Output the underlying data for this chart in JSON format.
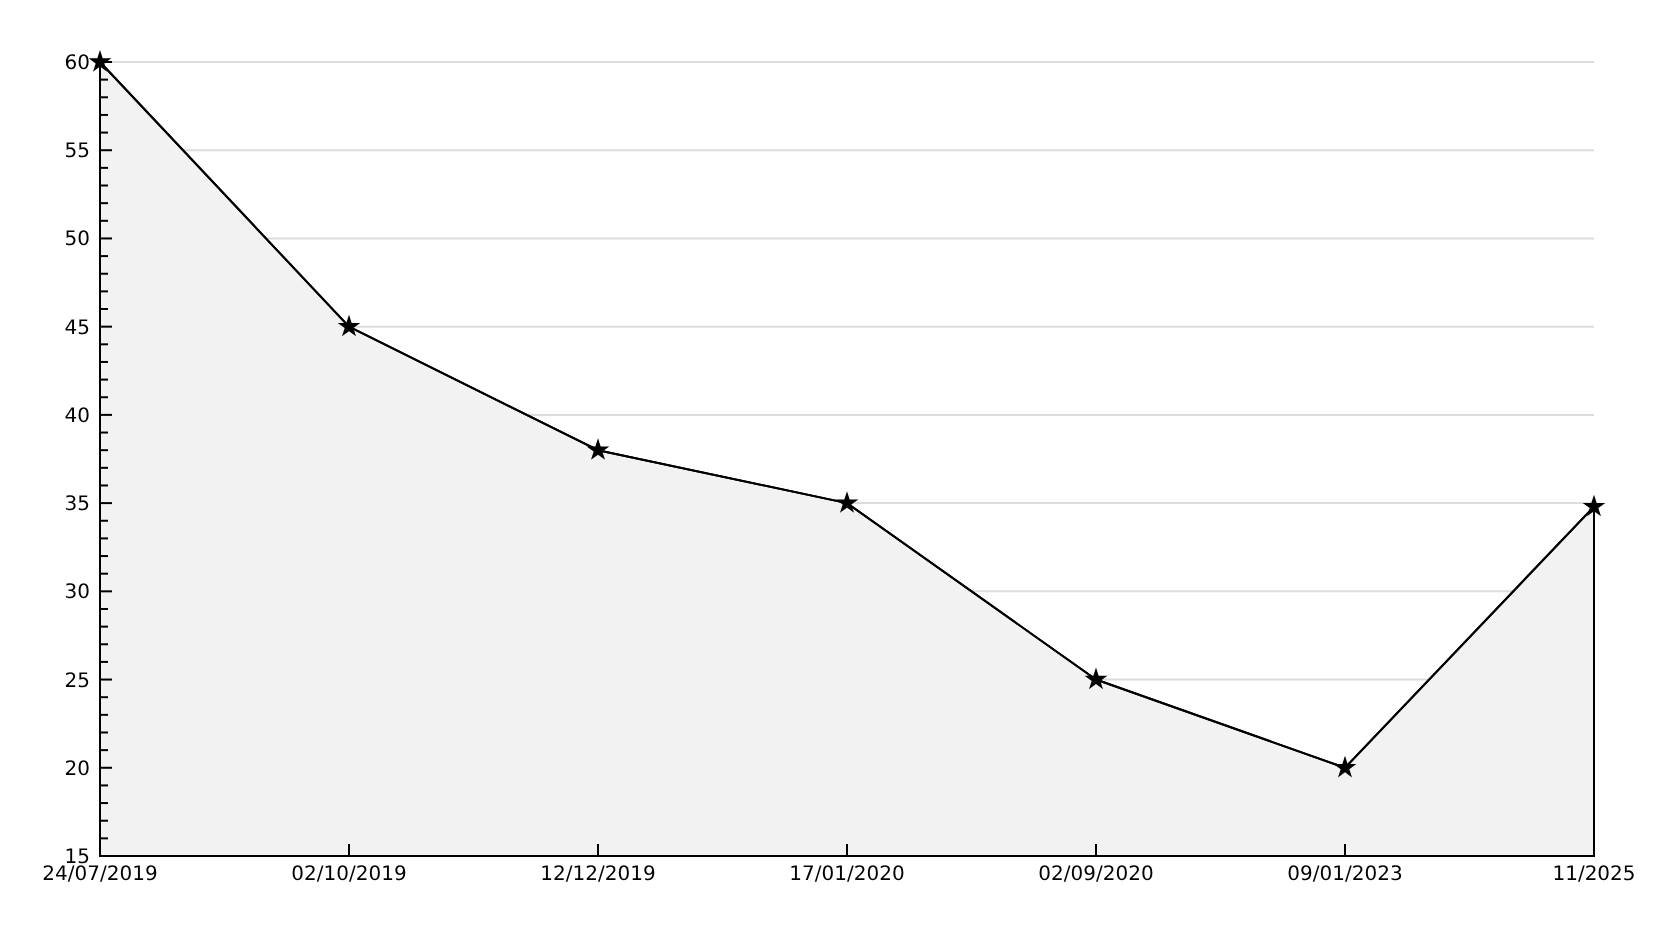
{
  "chart_data": {
    "type": "area",
    "categories": [
      "24/07/2019",
      "02/10/2019",
      "12/12/2019",
      "17/01/2020",
      "02/09/2020",
      "09/01/2023",
      "11/2025"
    ],
    "series": [
      {
        "color": "#f2f2f2",
        "values": [
          60,
          45,
          38,
          35,
          25,
          20,
          34.8
        ]
      }
    ],
    "ylim": [
      15,
      60
    ],
    "yticks": [
      15,
      {
        "value": 16,
        "label": null
      },
      {
        "value": 17,
        "label": null
      },
      {
        "value": 18,
        "label": null
      },
      {
        "value": 19,
        "label": null
      },
      20,
      {
        "value": 21,
        "label": null
      },
      {
        "value": 22,
        "label": null
      },
      {
        "value": 23,
        "label": null
      },
      {
        "value": 24,
        "label": null
      },
      25,
      {
        "value": 26,
        "label": null
      },
      {
        "value": 27,
        "label": null
      },
      {
        "value": 28,
        "label": null
      },
      {
        "value": 29,
        "label": null
      },
      30,
      {
        "value": 31,
        "label": null
      },
      {
        "value": 32,
        "label": null
      },
      {
        "value": 33,
        "label": null
      },
      {
        "value": 34,
        "label": null
      },
      35,
      {
        "value": 36,
        "label": null
      },
      {
        "value": 37,
        "label": null
      },
      {
        "value": 38,
        "label": null
      },
      {
        "value": 39,
        "label": null
      },
      40,
      {
        "value": 41,
        "label": null
      },
      {
        "value": 42,
        "label": null
      },
      {
        "value": 43,
        "label": null
      },
      {
        "value": 44,
        "label": null
      },
      45,
      {
        "value": 46,
        "label": null
      },
      {
        "value": 47,
        "label": null
      },
      {
        "value": 48,
        "label": null
      },
      {
        "value": 49,
        "label": null
      },
      50,
      {
        "value": 51,
        "label": null
      },
      {
        "value": 52,
        "label": null
      },
      {
        "value": 53,
        "label": null
      },
      {
        "value": 54,
        "label": null
      },
      55,
      {
        "value": 56,
        "label": null
      },
      {
        "value": 57,
        "label": null
      },
      {
        "value": 58,
        "label": null
      },
      {
        "value": 59,
        "label": null
      },
      60
    ],
    "grid": "y",
    "marker": "star",
    "line_style": "solid"
  }
}
